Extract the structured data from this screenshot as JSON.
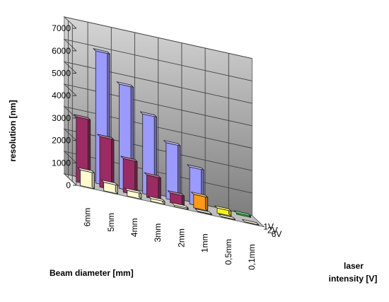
{
  "chart_data": {
    "type": "bar3d",
    "ylabel": "resolution [nm]",
    "xlabel": "Beam diameter [mm]",
    "zlabel_line1": "laser",
    "zlabel_line2": "intensity [V]",
    "ylim": [
      0,
      7000
    ],
    "y_ticks": [
      "0",
      "1000",
      "2000",
      "3000",
      "4000",
      "5000",
      "6000",
      "7000"
    ],
    "categories": [
      "6mm",
      "5mm",
      "4mm",
      "3mm",
      "2mm",
      "1mm",
      "0,5mm",
      "0,1mm"
    ],
    "series": [
      {
        "name": "1V",
        "values": [
          null,
          5900,
          4650,
          3550,
          2500,
          1650,
          null,
          null
        ]
      },
      {
        "name": "2V",
        "values": [
          2900,
          2250,
          1500,
          1000,
          430,
          null,
          null,
          null
        ]
      },
      {
        "name": "6V",
        "values": [
          700,
          380,
          250,
          120,
          60,
          20,
          15,
          10
        ]
      }
    ],
    "special_bars": [
      {
        "series": "2V",
        "category": "1mm",
        "value": 600,
        "color": "#ff9a12"
      },
      {
        "series": "2V",
        "category": "0,5mm",
        "value": 220,
        "color": "#f8f418"
      },
      {
        "series": "1V",
        "category": "0,1mm",
        "value": 60,
        "color": "#33c03a"
      }
    ],
    "colors": {
      "1V": "#9a9aff",
      "2V": "#9c2a63",
      "6V": "#fffbcf",
      "back_wall": "#9a9a9a",
      "side_wall": "#d0d0d0",
      "floor": "#bfbfbf"
    },
    "grid": true
  }
}
